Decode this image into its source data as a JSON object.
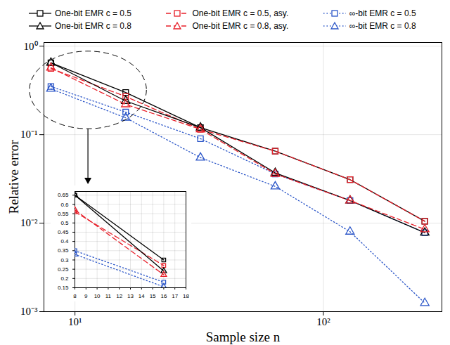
{
  "chart_data": [
    {
      "type": "line",
      "xlabel": "Sample size n",
      "ylabel": "Relative error",
      "log": true,
      "grid": true,
      "legend": "top",
      "x": [
        8,
        16,
        32,
        64,
        128,
        256
      ],
      "xlim": [
        7.5,
        300
      ],
      "xticks": [
        {
          "value": 10,
          "label": "10¹"
        },
        {
          "value": 100,
          "label": "10²"
        }
      ],
      "ylim": [
        0.001,
        1.1
      ],
      "yticks": [
        {
          "value": 0.001,
          "label": "10⁻³"
        },
        {
          "value": 0.01,
          "label": "10⁻²"
        },
        {
          "value": 0.1,
          "label": "10⁻¹"
        },
        {
          "value": 1,
          "label": "10⁰"
        }
      ],
      "series": [
        {
          "name": "One-bit EMR c = 0.5",
          "color": "#000000",
          "marker": "square",
          "line_style": "solid",
          "values": [
            0.65,
            0.3,
            0.12,
            0.065,
            0.031,
            0.0105
          ]
        },
        {
          "name": "One-bit EMR c = 0.5, asy.",
          "color": "#e8202a",
          "marker": "square",
          "line_style": "dashed",
          "values": [
            0.56,
            0.27,
            0.115,
            0.065,
            0.031,
            0.0105
          ]
        },
        {
          "name": "∞-bit EMR c = 0.5",
          "color": "#2a55c8",
          "marker": "square",
          "line_style": "dotted",
          "values": [
            0.35,
            0.18,
            0.09,
            0.036,
            0.018,
            0.0078
          ]
        },
        {
          "name": "One-bit EMR c = 0.8",
          "color": "#000000",
          "marker": "triangle",
          "line_style": "solid",
          "values": [
            0.65,
            0.24,
            0.12,
            0.037,
            0.018,
            0.0078
          ]
        },
        {
          "name": "One-bit EMR c = 0.8, asy.",
          "color": "#e8202a",
          "marker": "triangle",
          "line_style": "dashed",
          "values": [
            0.57,
            0.22,
            0.115,
            0.036,
            0.018,
            0.0085
          ]
        },
        {
          "name": "∞-bit EMR c = 0.8",
          "color": "#2a55c8",
          "marker": "triangle",
          "line_style": "dotted",
          "values": [
            0.33,
            0.155,
            0.055,
            0.026,
            0.008,
            0.00125
          ]
        }
      ]
    },
    {
      "type": "line",
      "grid": true,
      "x": [
        8,
        16
      ],
      "xlim": [
        8,
        18
      ],
      "xticks": [
        8,
        9,
        10,
        11,
        12,
        13,
        14,
        15,
        16,
        17,
        18
      ],
      "ylim": [
        0.15,
        0.67
      ],
      "yticks": [
        0.15,
        0.2,
        0.25,
        0.3,
        0.35,
        0.4,
        0.45,
        0.5,
        0.55,
        0.6,
        0.65
      ],
      "series": [
        {
          "color": "#000000",
          "marker": "square",
          "line_style": "solid",
          "values": [
            0.65,
            0.3
          ]
        },
        {
          "color": "#e8202a",
          "marker": "square",
          "line_style": "dashed",
          "values": [
            0.56,
            0.27
          ]
        },
        {
          "color": "#2a55c8",
          "marker": "square",
          "line_style": "dotted",
          "values": [
            0.35,
            0.18
          ]
        },
        {
          "color": "#000000",
          "marker": "triangle",
          "line_style": "solid",
          "values": [
            0.65,
            0.24
          ]
        },
        {
          "color": "#e8202a",
          "marker": "triangle",
          "line_style": "dashed",
          "values": [
            0.57,
            0.22
          ]
        },
        {
          "color": "#2a55c8",
          "marker": "triangle",
          "line_style": "dotted",
          "values": [
            0.33,
            0.155
          ]
        }
      ]
    }
  ]
}
